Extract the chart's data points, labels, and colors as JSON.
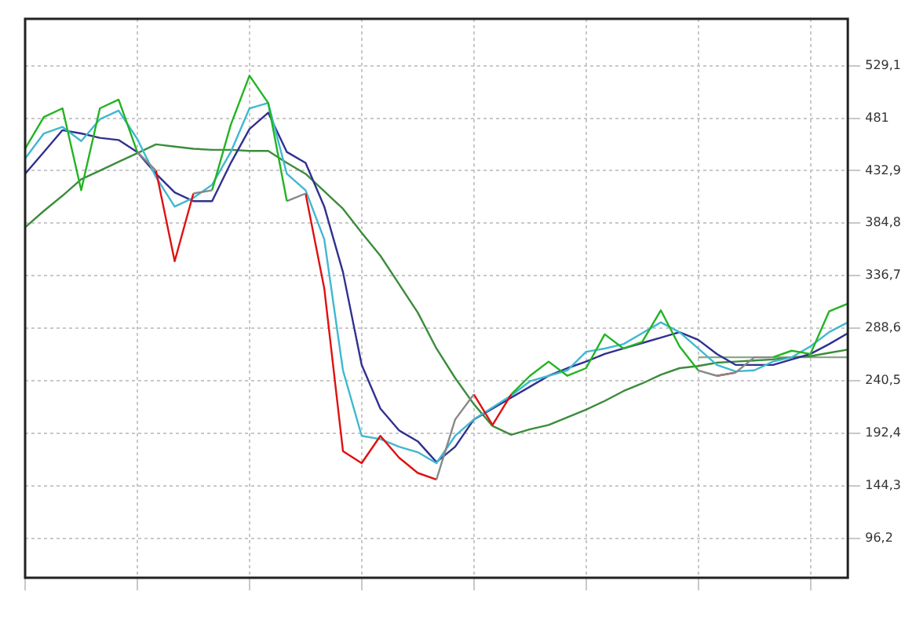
{
  "chart_data": {
    "type": "line",
    "ylim": [
      60,
      572
    ],
    "categories": [
      null,
      null,
      null,
      null,
      null,
      null,
      null,
      null,
      null,
      null,
      null,
      null,
      null,
      null,
      null,
      null,
      null,
      null,
      null,
      null,
      null,
      null,
      null,
      null,
      null,
      null,
      null,
      null,
      null,
      null,
      null,
      null,
      null,
      null,
      null,
      null,
      null,
      null,
      null,
      null,
      null,
      null,
      null,
      null,
      null
    ],
    "yticks": [
      {
        "value": 96.2,
        "label": "96,2"
      },
      {
        "value": 144.3,
        "label": "144,3"
      },
      {
        "value": 192.4,
        "label": "192,4"
      },
      {
        "value": 240.5,
        "label": "240,5"
      },
      {
        "value": 288.6,
        "label": "288,6"
      },
      {
        "value": 336.7,
        "label": "336,7"
      },
      {
        "value": 384.8,
        "label": "384,8"
      },
      {
        "value": 432.9,
        "label": "432,9"
      },
      {
        "value": 481,
        "label": "481"
      },
      {
        "value": 529.1,
        "label": "529,1"
      }
    ],
    "tick_labels": "y",
    "grid": true,
    "legend": false,
    "marker": "none",
    "line_style": "solid",
    "series": [
      {
        "color": "#22b422",
        "values": [
          453,
          482,
          490,
          415,
          490,
          498,
          450,
          null,
          null,
          null,
          415,
          475,
          520,
          495,
          405,
          null,
          null,
          null,
          null,
          null,
          null,
          null,
          null,
          null,
          null,
          null,
          228,
          245,
          258,
          245,
          252,
          283,
          270,
          276,
          305,
          272,
          250,
          null,
          null,
          null,
          262,
          268,
          265,
          304,
          311
        ]
      },
      {
        "color": "#888888",
        "values": [
          null,
          null,
          null,
          null,
          null,
          null,
          450,
          433,
          null,
          412,
          415,
          null,
          null,
          null,
          405,
          412,
          null,
          null,
          null,
          null,
          null,
          null,
          150,
          205,
          228,
          null,
          null,
          null,
          null,
          null,
          null,
          null,
          null,
          null,
          null,
          null,
          250,
          245,
          248,
          262,
          262,
          null,
          null,
          null,
          null
        ]
      },
      {
        "color": "#e01010",
        "values": [
          null,
          null,
          null,
          null,
          null,
          null,
          null,
          433,
          350,
          412,
          null,
          null,
          null,
          null,
          null,
          412,
          325,
          176,
          165,
          190,
          170,
          156,
          150,
          null,
          228,
          200,
          228,
          null,
          null,
          null,
          null,
          null,
          null,
          null,
          null,
          null,
          null,
          245,
          248,
          null,
          null,
          null,
          null,
          null,
          null
        ]
      },
      {
        "color": "#40b8d0",
        "values": [
          444,
          467,
          473,
          460,
          480,
          488,
          462,
          427,
          400,
          408,
          420,
          450,
          490,
          495,
          430,
          415,
          370,
          250,
          190,
          187,
          180,
          175,
          165,
          190,
          205,
          216,
          227,
          240,
          245,
          250,
          267,
          270,
          274,
          284,
          294,
          285,
          270,
          255,
          249,
          250,
          258,
          262,
          272,
          285,
          294
        ]
      },
      {
        "color": "#303090",
        "values": [
          430,
          450,
          470,
          467,
          463,
          461,
          450,
          430,
          413,
          405,
          405,
          440,
          471,
          486,
          450,
          440,
          400,
          340,
          255,
          215,
          195,
          185,
          166,
          180,
          205,
          215,
          225,
          235,
          245,
          252,
          258,
          265,
          270,
          275,
          280,
          285,
          278,
          265,
          255,
          255,
          255,
          260,
          265,
          274,
          284
        ]
      },
      {
        "color": "#3c8c3c",
        "values": [
          381,
          396,
          410,
          425,
          433,
          441,
          449,
          457,
          455,
          453,
          452,
          452,
          451,
          451,
          440,
          430,
          414,
          398,
          376,
          355,
          329,
          303,
          270,
          243,
          219,
          199,
          191,
          196,
          200,
          207,
          214,
          222,
          231,
          238,
          246,
          252,
          254,
          257,
          258,
          259,
          260,
          262,
          263,
          266,
          269
        ]
      },
      {
        "color": "#8aa88a",
        "values": [
          null,
          null,
          null,
          null,
          null,
          null,
          null,
          null,
          null,
          null,
          null,
          null,
          null,
          null,
          null,
          null,
          null,
          null,
          null,
          null,
          null,
          null,
          null,
          null,
          null,
          null,
          null,
          null,
          null,
          null,
          null,
          null,
          null,
          null,
          null,
          null,
          262,
          262,
          262,
          262,
          262,
          262,
          262,
          262,
          262
        ]
      }
    ]
  }
}
